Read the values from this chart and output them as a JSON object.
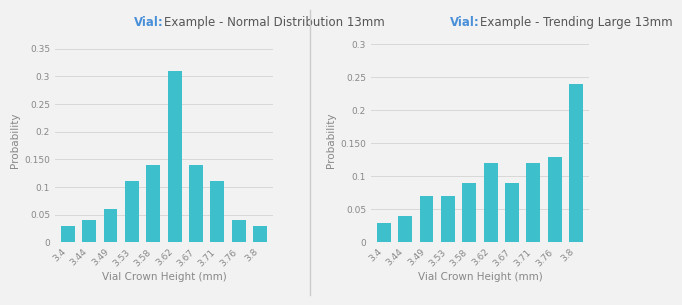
{
  "chart1": {
    "title_vial": "Vial:",
    "title_rest": "Example - Normal Distribution 13mm",
    "categories": [
      "3.4",
      "3.44",
      "3.49",
      "3.53",
      "3.58",
      "3.62",
      "3.67",
      "3.71",
      "3.76",
      "3.8"
    ],
    "values": [
      0.03,
      0.04,
      0.06,
      0.11,
      0.14,
      0.31,
      0.14,
      0.11,
      0.04,
      0.03
    ],
    "ylim": [
      0,
      0.37
    ],
    "yticks": [
      0,
      0.05,
      0.1,
      0.15,
      0.2,
      0.25,
      0.3,
      0.35
    ],
    "ytick_labels": [
      "0",
      "0.05",
      "0.1",
      "0.150",
      "0.2",
      "0.25",
      "0.3",
      "0.35"
    ],
    "xlabel": "Vial Crown Height (mm)",
    "ylabel": "Probability"
  },
  "chart2": {
    "title_vial": "Vial:",
    "title_rest": "Example - Trending Large 13mm",
    "categories": [
      "3.4",
      "3.44",
      "3.49",
      "3.53",
      "3.58",
      "3.62",
      "3.67",
      "3.71",
      "3.76",
      "3.8"
    ],
    "values": [
      0.03,
      0.04,
      0.07,
      0.07,
      0.09,
      0.12,
      0.09,
      0.12,
      0.13,
      0.24
    ],
    "ylim": [
      0,
      0.31
    ],
    "yticks": [
      0,
      0.05,
      0.1,
      0.15,
      0.2,
      0.25,
      0.3
    ],
    "ytick_labels": [
      "0",
      "0.05",
      "0.1",
      "0.150",
      "0.2",
      "0.25",
      "0.3"
    ],
    "xlabel": "Vial Crown Height (mm)",
    "ylabel": "Probability"
  },
  "bar_color": "#3dbfcc",
  "bar_edge_color": "none",
  "background_color": "#f2f2f2",
  "axes_background": "#f2f2f2",
  "grid_color": "#d8d8d8",
  "divider_color": "#cccccc",
  "title_vial_color": "#4a90d9",
  "title_rest_color": "#555555",
  "title_fontsize": 8.5,
  "axis_label_fontsize": 7.5,
  "tick_fontsize": 6.5
}
